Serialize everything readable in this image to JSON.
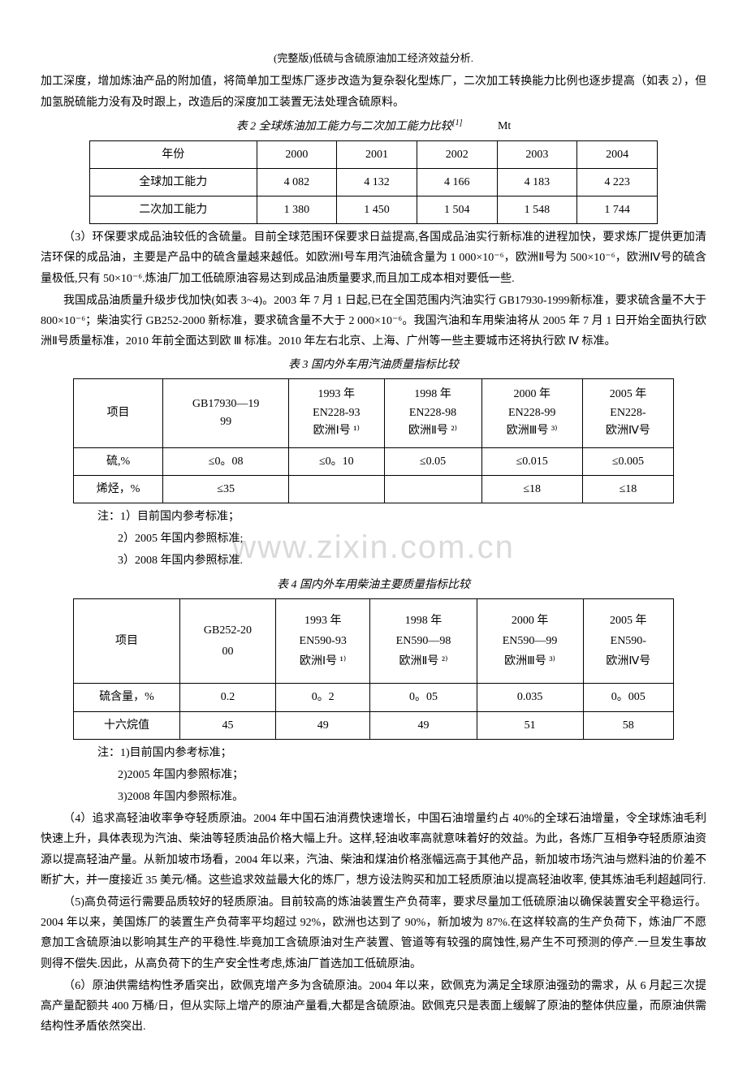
{
  "header": "(完整版)低硫与含硫原油加工经济效益分析.",
  "para1": "加工深度，增加炼油产品的附加值，将简单加工型炼厂逐步改造为复杂裂化型炼厂，二次加工转换能力比例也逐步提高（如表 2），但加氢脱硫能力没有及时跟上，改造后的深度加工装置无法处理含硫原料。",
  "table2": {
    "title": "表 2  全球炼油加工能力与二次加工能力比较",
    "ref": "[1]",
    "unit": "Mt",
    "headers": [
      "年份",
      "2000",
      "2001",
      "2002",
      "2003",
      "2004"
    ],
    "rows": [
      [
        "全球加工能力",
        "4 082",
        "4 132",
        "4 166",
        "4 183",
        "4 223"
      ],
      [
        "二次加工能力",
        "1 380",
        "1 450",
        "1 504",
        "1 548",
        "1 744"
      ]
    ]
  },
  "para2": "（3）环保要求成品油较低的含硫量。目前全球范围环保要求日益提高,各国成品油实行新标准的进程加快，要求炼厂提供更加清洁环保的成品油，主要是产品中的硫含量越来越低。如欧洲Ⅰ号车用汽油硫含量为 1 000×10⁻⁶，欧洲Ⅱ号为 500×10⁻⁶，欧洲Ⅳ号的硫含量极低,只有 50×10⁻⁶.炼油厂加工低硫原油容易达到成品油质量要求,而且加工成本相对要低一些.",
  "para3": "我国成品油质量升级步伐加快(如表 3~4)。2003 年 7 月 1 日起,已在全国范围内汽油实行 GB17930-1999新标准，要求硫含量不大于 800×10⁻⁶；柴油实行 GB252-2000 新标准，要求硫含量不大于 2 000×10⁻⁶。我国汽油和车用柴油将从 2005 年 7 月 1 日开始全面执行欧洲Ⅱ号质量标准，2010 年前全面达到欧 Ⅲ 标准。2010 年左右北京、上海、广州等一些主要城市还将执行欧 Ⅳ 标准。",
  "table3": {
    "title": "表 3  国内外车用汽油质量指标比较",
    "headers": [
      "项目",
      "GB17930—19\n99",
      "1993 年\nEN228-93\n欧洲Ⅰ号 ¹⁾",
      "1998 年\nEN228-98\n欧洲Ⅱ号 ²⁾",
      "2000 年\nEN228-99\n欧洲Ⅲ号 ³⁾",
      "2005 年\nEN228-\n欧洲Ⅳ号"
    ],
    "rows": [
      [
        "硫,%",
        "≤0。08",
        "≤0。10",
        "≤0.05",
        "≤0.015",
        "≤0.005"
      ],
      [
        "烯烃，%",
        "≤35",
        "",
        "",
        "≤18",
        "≤18"
      ]
    ]
  },
  "notes3": [
    "注：1）目前国内参考标准；",
    "2）2005 年国内参照标准;",
    "3）2008 年国内参照标准."
  ],
  "table4": {
    "title": "表 4  国内外车用柴油主要质量指标比较",
    "headers": [
      "项目",
      "GB252-20\n00",
      "1993 年\nEN590-93\n欧洲Ⅰ号 ¹⁾",
      "1998 年\nEN590—98\n欧洲Ⅱ号 ²⁾",
      "2000 年\nEN590—99\n欧洲Ⅲ号 ³⁾",
      "2005 年\nEN590-\n欧洲Ⅳ号"
    ],
    "rows": [
      [
        "硫含量，%",
        "0.2",
        "0。2",
        "0。05",
        "0.035",
        "0。005"
      ],
      [
        "十六烷值",
        "45",
        "49",
        "49",
        "51",
        "58"
      ]
    ]
  },
  "notes4": [
    "注：1)目前国内参考标准；",
    "2)2005 年国内参照标准；",
    "3)2008 年国内参照标准。"
  ],
  "para4": "（4）追求高轻油收率争夺轻质原油。2004 年中国石油消费快速增长，中国石油增量约占 40%的全球石油增量，令全球炼油毛利快速上升，具体表现为汽油、柴油等轻质油品价格大幅上升。这样,轻油收率高就意味着好的效益。为此，各炼厂互相争夺轻质原油资源以提高轻油产量。从新加坡市场看，2004 年以来，汽油、柴油和煤油价格涨幅远高于其他产品，新加坡市场汽油与燃料油的价差不断扩大，并一度接近 35 美元/桶。这些追求效益最大化的炼厂，想方设法购买和加工轻质原油以提高轻油收率, 使其炼油毛利超越同行.",
  "para5": "（5)高负荷运行需要品质较好的轻质原油。目前较高的炼油装置生产负荷率，要求尽量加工低硫原油以确保装置安全平稳运行。2004 年以来，美国炼厂的装置生产负荷率平均超过 92%，欧洲也达到了 90%，新加坡为 87%.在这样较高的生产负荷下，炼油厂不愿意加工含硫原油以影响其生产的平稳性.毕竟加工含硫原油对生产装置、管道等有较强的腐蚀性,易产生不可预测的停产.一旦发生事故则得不偿失.因此，从高负荷下的生产安全性考虑,炼油厂首选加工低硫原油。",
  "para6": "（6）原油供需结构性矛盾突出，欧佩克增产多为含硫原油。2004 年以来，欧佩克为满足全球原油强劲的需求，从 6 月起三次提高产量配额共 400 万桶/日，但从实际上增产的原油产量看,大都是含硫原油。欧佩克只是表面上缓解了原油的整体供应量，而原油供需结构性矛盾依然突出.",
  "watermark": "www.zixin.com.cn"
}
